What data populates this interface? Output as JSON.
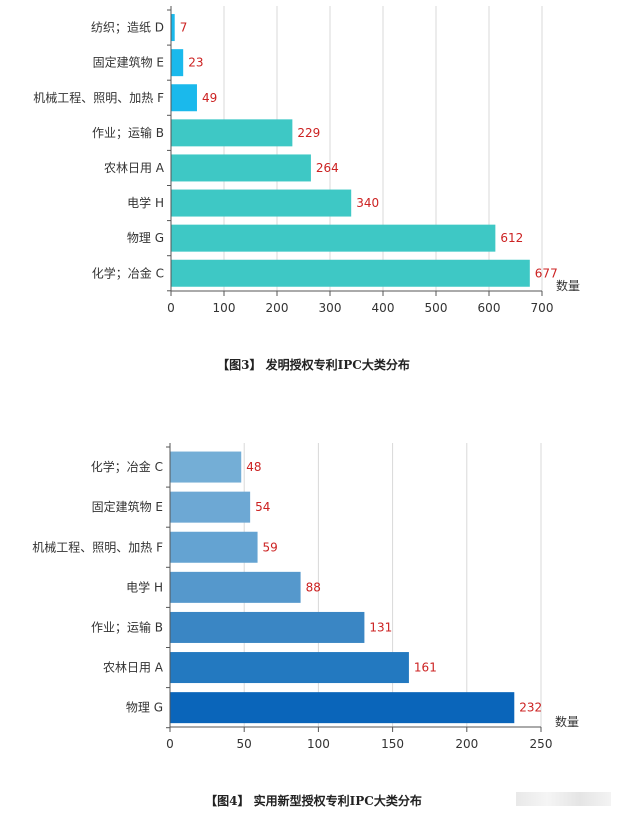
{
  "chart_data": [
    {
      "type": "bar",
      "orientation": "horizontal",
      "categories": [
        "纺织；造纸 D",
        "固定建筑物 E",
        "机械工程、照明、加热 F",
        "作业；运输 B",
        "农林日用 A",
        "电学 H",
        "物理 G",
        "化学；冶金 C"
      ],
      "values": [
        7,
        23,
        49,
        229,
        264,
        340,
        612,
        677
      ],
      "bar_colors": [
        "#1ab9ec",
        "#1ab9ec",
        "#1ab9ec",
        "#3ec8c5",
        "#3ec8c5",
        "#3ec8c5",
        "#3ec8c5",
        "#3ec8c5"
      ],
      "value_label_color": "#cc2222",
      "xlim": [
        0,
        700
      ],
      "xticks": [
        0,
        100,
        200,
        300,
        400,
        500,
        600,
        700
      ],
      "xlabel": "数量",
      "grid": "vertical",
      "caption": "【图3】 发明授权专利IPC大类分布"
    },
    {
      "type": "bar",
      "orientation": "horizontal",
      "categories": [
        "化学；冶金 C",
        "固定建筑物 E",
        "机械工程、照明、加热 F",
        "电学 H",
        "作业；运输 B",
        "农林日用 A",
        "物理 G"
      ],
      "values": [
        48,
        54,
        59,
        88,
        131,
        161,
        232
      ],
      "bar_colors": [
        "#74aed6",
        "#6da8d4",
        "#64a3d2",
        "#5598cc",
        "#3a86c4",
        "#2379c0",
        "#0a65ba"
      ],
      "value_label_color": "#cc2222",
      "xlim": [
        0,
        250
      ],
      "xticks": [
        0,
        50,
        100,
        150,
        200,
        250
      ],
      "xlabel": "数量",
      "grid": "vertical",
      "caption": "【图4】 实用新型授权专利IPC大类分布"
    }
  ]
}
